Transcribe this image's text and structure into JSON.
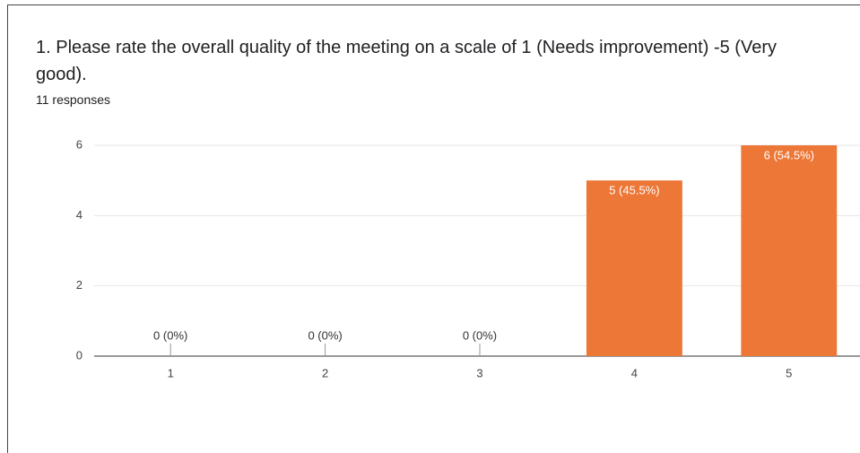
{
  "chart_data": {
    "type": "bar",
    "title": "1. Please rate the overall quality of the meeting on a scale of 1 (Needs improvement) -5 (Very good).",
    "subtitle": "11 responses",
    "categories": [
      "1",
      "2",
      "3",
      "4",
      "5"
    ],
    "values": [
      0,
      0,
      0,
      5,
      6
    ],
    "value_labels": [
      "0 (0%)",
      "0 (0%)",
      "0 (0%)",
      "5 (45.5%)",
      "6 (54.5%)"
    ],
    "color": "#ed7737",
    "ylim": [
      0,
      6
    ],
    "yticks": [
      0,
      2,
      4,
      6
    ],
    "grid": true
  }
}
